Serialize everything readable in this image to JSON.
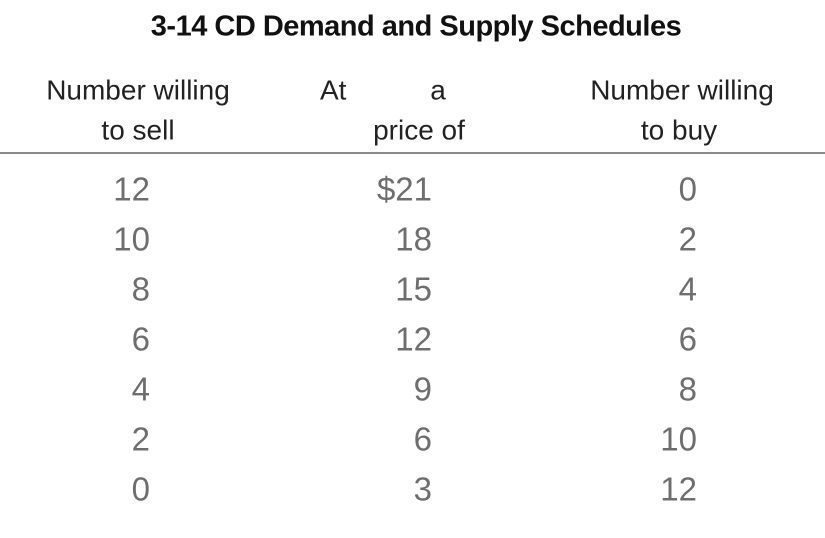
{
  "header": {
    "title": "3-14 CD Demand and Supply Schedules"
  },
  "table": {
    "columns": [
      {
        "lines": [
          "Number willing",
          "to sell"
        ]
      },
      {
        "lines": [
          "At",
          "a",
          "price of"
        ]
      },
      {
        "lines": [
          "Number willing",
          "to buy"
        ]
      }
    ],
    "rows": [
      [
        12,
        "$21",
        0
      ],
      [
        10,
        18,
        2
      ],
      [
        8,
        15,
        4
      ],
      [
        6,
        12,
        6
      ],
      [
        4,
        9,
        8
      ],
      [
        2,
        6,
        10
      ],
      [
        0,
        3,
        12
      ]
    ]
  }
}
